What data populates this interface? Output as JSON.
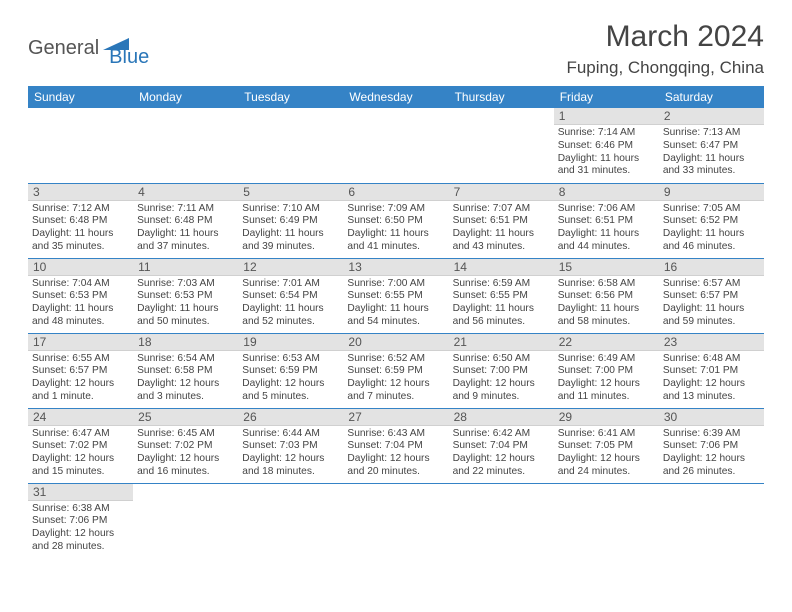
{
  "logo": {
    "text1": "General",
    "text2": "Blue"
  },
  "title": "March 2024",
  "location": "Fuping, Chongqing, China",
  "styles": {
    "header_bg": "#3583c6",
    "header_fg": "#ffffff",
    "daynum_bg": "#e3e3e3",
    "row_border": "#3583c6",
    "body_fontsize": 10.2,
    "header_fontsize": 12,
    "title_fontsize": 30
  },
  "weekdays": [
    "Sunday",
    "Monday",
    "Tuesday",
    "Wednesday",
    "Thursday",
    "Friday",
    "Saturday"
  ],
  "weeks": [
    [
      null,
      null,
      null,
      null,
      null,
      {
        "n": "1",
        "sr": "7:14 AM",
        "ss": "6:46 PM",
        "dl": "11 hours and 31 minutes."
      },
      {
        "n": "2",
        "sr": "7:13 AM",
        "ss": "6:47 PM",
        "dl": "11 hours and 33 minutes."
      }
    ],
    [
      {
        "n": "3",
        "sr": "7:12 AM",
        "ss": "6:48 PM",
        "dl": "11 hours and 35 minutes."
      },
      {
        "n": "4",
        "sr": "7:11 AM",
        "ss": "6:48 PM",
        "dl": "11 hours and 37 minutes."
      },
      {
        "n": "5",
        "sr": "7:10 AM",
        "ss": "6:49 PM",
        "dl": "11 hours and 39 minutes."
      },
      {
        "n": "6",
        "sr": "7:09 AM",
        "ss": "6:50 PM",
        "dl": "11 hours and 41 minutes."
      },
      {
        "n": "7",
        "sr": "7:07 AM",
        "ss": "6:51 PM",
        "dl": "11 hours and 43 minutes."
      },
      {
        "n": "8",
        "sr": "7:06 AM",
        "ss": "6:51 PM",
        "dl": "11 hours and 44 minutes."
      },
      {
        "n": "9",
        "sr": "7:05 AM",
        "ss": "6:52 PM",
        "dl": "11 hours and 46 minutes."
      }
    ],
    [
      {
        "n": "10",
        "sr": "7:04 AM",
        "ss": "6:53 PM",
        "dl": "11 hours and 48 minutes."
      },
      {
        "n": "11",
        "sr": "7:03 AM",
        "ss": "6:53 PM",
        "dl": "11 hours and 50 minutes."
      },
      {
        "n": "12",
        "sr": "7:01 AM",
        "ss": "6:54 PM",
        "dl": "11 hours and 52 minutes."
      },
      {
        "n": "13",
        "sr": "7:00 AM",
        "ss": "6:55 PM",
        "dl": "11 hours and 54 minutes."
      },
      {
        "n": "14",
        "sr": "6:59 AM",
        "ss": "6:55 PM",
        "dl": "11 hours and 56 minutes."
      },
      {
        "n": "15",
        "sr": "6:58 AM",
        "ss": "6:56 PM",
        "dl": "11 hours and 58 minutes."
      },
      {
        "n": "16",
        "sr": "6:57 AM",
        "ss": "6:57 PM",
        "dl": "11 hours and 59 minutes."
      }
    ],
    [
      {
        "n": "17",
        "sr": "6:55 AM",
        "ss": "6:57 PM",
        "dl": "12 hours and 1 minute."
      },
      {
        "n": "18",
        "sr": "6:54 AM",
        "ss": "6:58 PM",
        "dl": "12 hours and 3 minutes."
      },
      {
        "n": "19",
        "sr": "6:53 AM",
        "ss": "6:59 PM",
        "dl": "12 hours and 5 minutes."
      },
      {
        "n": "20",
        "sr": "6:52 AM",
        "ss": "6:59 PM",
        "dl": "12 hours and 7 minutes."
      },
      {
        "n": "21",
        "sr": "6:50 AM",
        "ss": "7:00 PM",
        "dl": "12 hours and 9 minutes."
      },
      {
        "n": "22",
        "sr": "6:49 AM",
        "ss": "7:00 PM",
        "dl": "12 hours and 11 minutes."
      },
      {
        "n": "23",
        "sr": "6:48 AM",
        "ss": "7:01 PM",
        "dl": "12 hours and 13 minutes."
      }
    ],
    [
      {
        "n": "24",
        "sr": "6:47 AM",
        "ss": "7:02 PM",
        "dl": "12 hours and 15 minutes."
      },
      {
        "n": "25",
        "sr": "6:45 AM",
        "ss": "7:02 PM",
        "dl": "12 hours and 16 minutes."
      },
      {
        "n": "26",
        "sr": "6:44 AM",
        "ss": "7:03 PM",
        "dl": "12 hours and 18 minutes."
      },
      {
        "n": "27",
        "sr": "6:43 AM",
        "ss": "7:04 PM",
        "dl": "12 hours and 20 minutes."
      },
      {
        "n": "28",
        "sr": "6:42 AM",
        "ss": "7:04 PM",
        "dl": "12 hours and 22 minutes."
      },
      {
        "n": "29",
        "sr": "6:41 AM",
        "ss": "7:05 PM",
        "dl": "12 hours and 24 minutes."
      },
      {
        "n": "30",
        "sr": "6:39 AM",
        "ss": "7:06 PM",
        "dl": "12 hours and 26 minutes."
      }
    ],
    [
      {
        "n": "31",
        "sr": "6:38 AM",
        "ss": "7:06 PM",
        "dl": "12 hours and 28 minutes."
      },
      null,
      null,
      null,
      null,
      null,
      null
    ]
  ],
  "labels": {
    "sunrise": "Sunrise:",
    "sunset": "Sunset:",
    "daylight": "Daylight:"
  }
}
